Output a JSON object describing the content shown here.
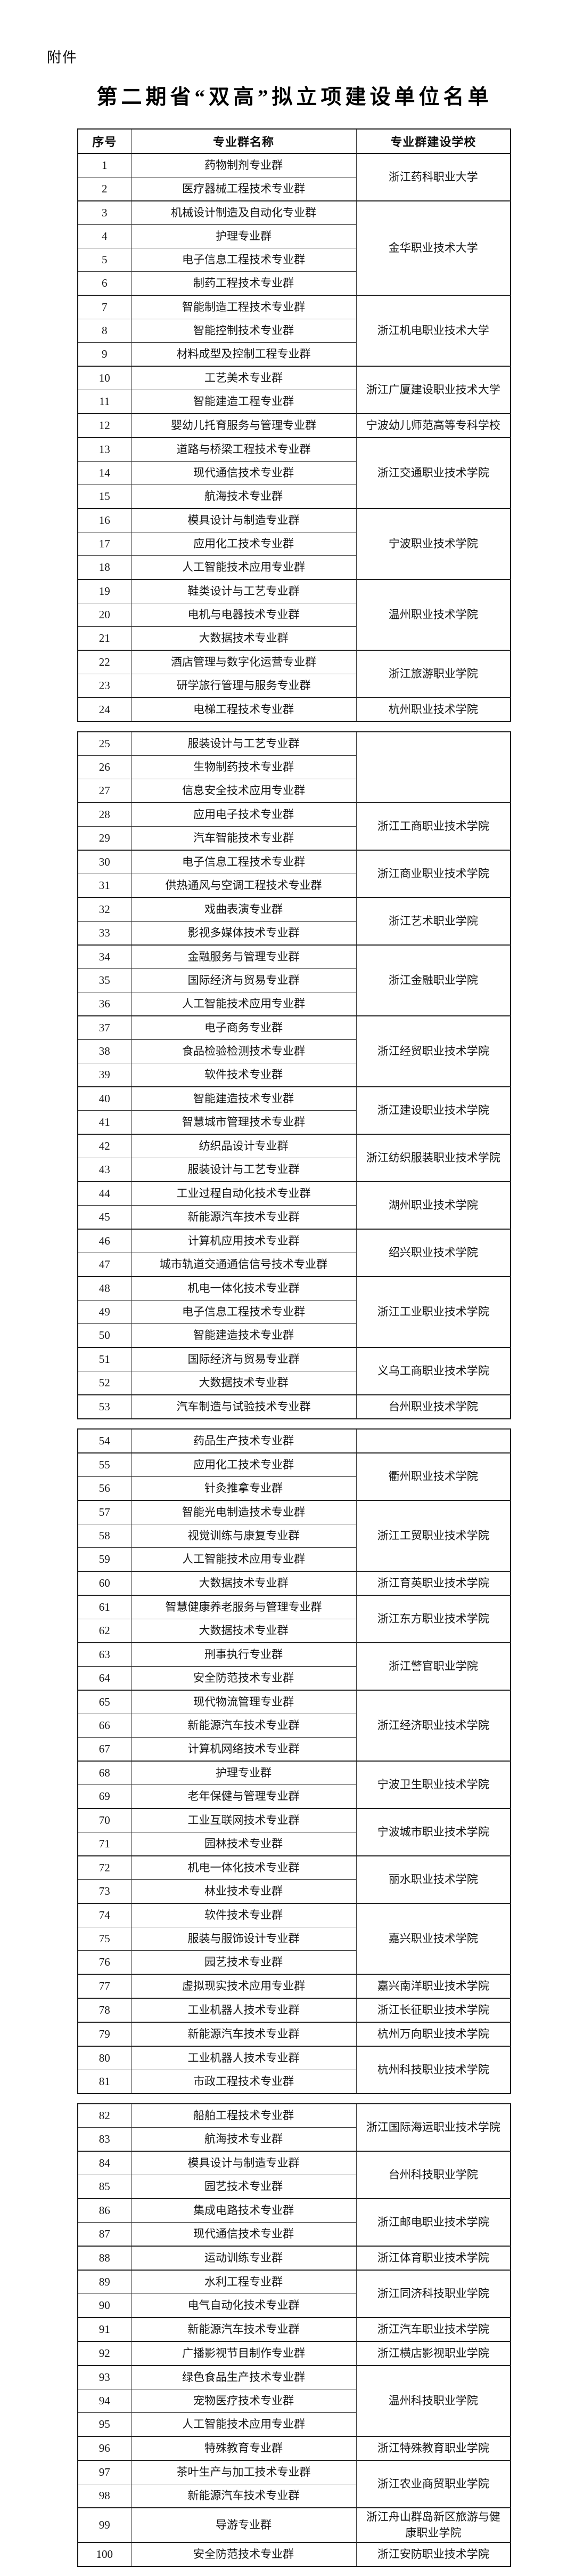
{
  "page": {
    "attachment_label": "附件",
    "title": "第二期省“双高”拟立项建设单位名单"
  },
  "table": {
    "headers": [
      "序号",
      "专业群名称",
      "专业群建设学校"
    ],
    "header_keys": [
      "no",
      "name",
      "school"
    ],
    "blocks": [
      {
        "has_header": true,
        "groups": [
          {
            "school": "浙江药科职业大学",
            "rows": [
              {
                "no": "1",
                "name": "药物制剂专业群"
              },
              {
                "no": "2",
                "name": "医疗器械工程技术专业群"
              }
            ]
          },
          {
            "school": "金华职业技术大学",
            "rows": [
              {
                "no": "3",
                "name": "机械设计制造及自动化专业群"
              },
              {
                "no": "4",
                "name": "护理专业群"
              },
              {
                "no": "5",
                "name": "电子信息工程技术专业群"
              },
              {
                "no": "6",
                "name": "制药工程技术专业群"
              }
            ]
          },
          {
            "school": "浙江机电职业技术大学",
            "rows": [
              {
                "no": "7",
                "name": "智能制造工程技术专业群"
              },
              {
                "no": "8",
                "name": "智能控制技术专业群"
              },
              {
                "no": "9",
                "name": "材料成型及控制工程专业群"
              }
            ]
          },
          {
            "school": "浙江广厦建设职业技术大学",
            "rows": [
              {
                "no": "10",
                "name": "工艺美术专业群"
              },
              {
                "no": "11",
                "name": "智能建造工程专业群"
              }
            ]
          },
          {
            "school": "宁波幼儿师范高等专科学校",
            "rows": [
              {
                "no": "12",
                "name": "婴幼儿托育服务与管理专业群"
              }
            ]
          },
          {
            "school": "浙江交通职业技术学院",
            "rows": [
              {
                "no": "13",
                "name": "道路与桥梁工程技术专业群"
              },
              {
                "no": "14",
                "name": "现代通信技术专业群"
              },
              {
                "no": "15",
                "name": "航海技术专业群"
              }
            ]
          },
          {
            "school": "宁波职业技术学院",
            "rows": [
              {
                "no": "16",
                "name": "模具设计与制造专业群"
              },
              {
                "no": "17",
                "name": "应用化工技术专业群"
              },
              {
                "no": "18",
                "name": "人工智能技术应用专业群"
              }
            ]
          },
          {
            "school": "温州职业技术学院",
            "rows": [
              {
                "no": "19",
                "name": "鞋类设计与工艺专业群"
              },
              {
                "no": "20",
                "name": "电机与电器技术专业群"
              },
              {
                "no": "21",
                "name": "大数据技术专业群"
              }
            ]
          },
          {
            "school": "浙江旅游职业学院",
            "rows": [
              {
                "no": "22",
                "name": "酒店管理与数字化运营专业群"
              },
              {
                "no": "23",
                "name": "研学旅行管理与服务专业群"
              }
            ]
          },
          {
            "school": "杭州职业技术学院",
            "rows": [
              {
                "no": "24",
                "name": "电梯工程技术专业群"
              }
            ]
          }
        ]
      },
      {
        "has_header": false,
        "groups": [
          {
            "school": "",
            "rows": [
              {
                "no": "25",
                "name": "服装设计与工艺专业群"
              },
              {
                "no": "26",
                "name": "生物制药技术专业群"
              },
              {
                "no": "27",
                "name": "信息安全技术应用专业群"
              }
            ]
          },
          {
            "school": "浙江工商职业技术学院",
            "rows": [
              {
                "no": "28",
                "name": "应用电子技术专业群"
              },
              {
                "no": "29",
                "name": "汽车智能技术专业群"
              }
            ]
          },
          {
            "school": "浙江商业职业技术学院",
            "rows": [
              {
                "no": "30",
                "name": "电子信息工程技术专业群"
              },
              {
                "no": "31",
                "name": "供热通风与空调工程技术专业群"
              }
            ]
          },
          {
            "school": "浙江艺术职业学院",
            "rows": [
              {
                "no": "32",
                "name": "戏曲表演专业群"
              },
              {
                "no": "33",
                "name": "影视多媒体技术专业群"
              }
            ]
          },
          {
            "school": "浙江金融职业学院",
            "rows": [
              {
                "no": "34",
                "name": "金融服务与管理专业群"
              },
              {
                "no": "35",
                "name": "国际经济与贸易专业群"
              },
              {
                "no": "36",
                "name": "人工智能技术应用专业群"
              }
            ]
          },
          {
            "school": "浙江经贸职业技术学院",
            "rows": [
              {
                "no": "37",
                "name": "电子商务专业群"
              },
              {
                "no": "38",
                "name": "食品检验检测技术专业群"
              },
              {
                "no": "39",
                "name": "软件技术专业群"
              }
            ]
          },
          {
            "school": "浙江建设职业技术学院",
            "rows": [
              {
                "no": "40",
                "name": "智能建造技术专业群"
              },
              {
                "no": "41",
                "name": "智慧城市管理技术专业群"
              }
            ]
          },
          {
            "school": "浙江纺织服装职业技术学院",
            "rows": [
              {
                "no": "42",
                "name": "纺织品设计专业群"
              },
              {
                "no": "43",
                "name": "服装设计与工艺专业群"
              }
            ]
          },
          {
            "school": "湖州职业技术学院",
            "rows": [
              {
                "no": "44",
                "name": "工业过程自动化技术专业群"
              },
              {
                "no": "45",
                "name": "新能源汽车技术专业群"
              }
            ]
          },
          {
            "school": "绍兴职业技术学院",
            "rows": [
              {
                "no": "46",
                "name": "计算机应用技术专业群"
              },
              {
                "no": "47",
                "name": "城市轨道交通通信信号技术专业群"
              }
            ]
          },
          {
            "school": "浙江工业职业技术学院",
            "rows": [
              {
                "no": "48",
                "name": "机电一体化技术专业群"
              },
              {
                "no": "49",
                "name": "电子信息工程技术专业群"
              },
              {
                "no": "50",
                "name": "智能建造技术专业群"
              }
            ]
          },
          {
            "school": "义乌工商职业技术学院",
            "rows": [
              {
                "no": "51",
                "name": "国际经济与贸易专业群"
              },
              {
                "no": "52",
                "name": "大数据技术专业群"
              }
            ]
          },
          {
            "school": "台州职业技术学院",
            "rows": [
              {
                "no": "53",
                "name": "汽车制造与试验技术专业群"
              }
            ]
          }
        ]
      },
      {
        "has_header": false,
        "groups": [
          {
            "school": "",
            "rows": [
              {
                "no": "54",
                "name": "药品生产技术专业群"
              }
            ]
          },
          {
            "school": "衢州职业技术学院",
            "rows": [
              {
                "no": "55",
                "name": "应用化工技术专业群"
              },
              {
                "no": "56",
                "name": "针灸推拿专业群"
              }
            ]
          },
          {
            "school": "浙江工贸职业技术学院",
            "rows": [
              {
                "no": "57",
                "name": "智能光电制造技术专业群"
              },
              {
                "no": "58",
                "name": "视觉训练与康复专业群"
              },
              {
                "no": "59",
                "name": "人工智能技术应用专业群"
              }
            ]
          },
          {
            "school": "浙江育英职业技术学院",
            "rows": [
              {
                "no": "60",
                "name": "大数据技术专业群"
              }
            ]
          },
          {
            "school": "浙江东方职业技术学院",
            "rows": [
              {
                "no": "61",
                "name": "智慧健康养老服务与管理专业群"
              },
              {
                "no": "62",
                "name": "大数据技术专业群"
              }
            ]
          },
          {
            "school": "浙江警官职业学院",
            "rows": [
              {
                "no": "63",
                "name": "刑事执行专业群"
              },
              {
                "no": "64",
                "name": "安全防范技术专业群"
              }
            ]
          },
          {
            "school": "浙江经济职业技术学院",
            "rows": [
              {
                "no": "65",
                "name": "现代物流管理专业群"
              },
              {
                "no": "66",
                "name": "新能源汽车技术专业群"
              },
              {
                "no": "67",
                "name": "计算机网络技术专业群"
              }
            ]
          },
          {
            "school": "宁波卫生职业技术学院",
            "rows": [
              {
                "no": "68",
                "name": "护理专业群"
              },
              {
                "no": "69",
                "name": "老年保健与管理专业群"
              }
            ]
          },
          {
            "school": "宁波城市职业技术学院",
            "rows": [
              {
                "no": "70",
                "name": "工业互联网技术专业群"
              },
              {
                "no": "71",
                "name": "园林技术专业群"
              }
            ]
          },
          {
            "school": "丽水职业技术学院",
            "rows": [
              {
                "no": "72",
                "name": "机电一体化技术专业群"
              },
              {
                "no": "73",
                "name": "林业技术专业群"
              }
            ]
          },
          {
            "school": "嘉兴职业技术学院",
            "rows": [
              {
                "no": "74",
                "name": "软件技术专业群"
              },
              {
                "no": "75",
                "name": "服装与服饰设计专业群"
              },
              {
                "no": "76",
                "name": "园艺技术专业群"
              }
            ]
          },
          {
            "school": "嘉兴南洋职业技术学院",
            "rows": [
              {
                "no": "77",
                "name": "虚拟现实技术应用专业群"
              }
            ]
          },
          {
            "school": "浙江长征职业技术学院",
            "rows": [
              {
                "no": "78",
                "name": "工业机器人技术专业群"
              }
            ]
          },
          {
            "school": "杭州万向职业技术学院",
            "rows": [
              {
                "no": "79",
                "name": "新能源汽车技术专业群"
              }
            ]
          },
          {
            "school": "杭州科技职业技术学院",
            "rows": [
              {
                "no": "80",
                "name": "工业机器人技术专业群"
              },
              {
                "no": "81",
                "name": "市政工程技术专业群"
              }
            ]
          }
        ]
      },
      {
        "has_header": false,
        "groups": [
          {
            "school": "浙江国际海运职业技术学院",
            "rows": [
              {
                "no": "82",
                "name": "船舶工程技术专业群"
              },
              {
                "no": "83",
                "name": "航海技术专业群"
              }
            ]
          },
          {
            "school": "台州科技职业学院",
            "rows": [
              {
                "no": "84",
                "name": "模具设计与制造专业群"
              },
              {
                "no": "85",
                "name": "园艺技术专业群"
              }
            ]
          },
          {
            "school": "浙江邮电职业技术学院",
            "rows": [
              {
                "no": "86",
                "name": "集成电路技术专业群"
              },
              {
                "no": "87",
                "name": "现代通信技术专业群"
              }
            ]
          },
          {
            "school": "浙江体育职业技术学院",
            "rows": [
              {
                "no": "88",
                "name": "运动训练专业群"
              }
            ]
          },
          {
            "school": "浙江同济科技职业学院",
            "rows": [
              {
                "no": "89",
                "name": "水利工程专业群"
              },
              {
                "no": "90",
                "name": "电气自动化技术专业群"
              }
            ]
          },
          {
            "school": "浙江汽车职业技术学院",
            "rows": [
              {
                "no": "91",
                "name": "新能源汽车技术专业群"
              }
            ]
          },
          {
            "school": "浙江横店影视职业学院",
            "rows": [
              {
                "no": "92",
                "name": "广播影视节目制作专业群"
              }
            ]
          },
          {
            "school": "温州科技职业学院",
            "rows": [
              {
                "no": "93",
                "name": "绿色食品生产技术专业群"
              },
              {
                "no": "94",
                "name": "宠物医疗技术专业群"
              },
              {
                "no": "95",
                "name": "人工智能技术应用专业群"
              }
            ]
          },
          {
            "school": "浙江特殊教育职业学院",
            "rows": [
              {
                "no": "96",
                "name": "特殊教育专业群"
              }
            ]
          },
          {
            "school": "浙江农业商贸职业学院",
            "rows": [
              {
                "no": "97",
                "name": "茶叶生产与加工技术专业群"
              },
              {
                "no": "98",
                "name": "新能源汽车技术专业群"
              }
            ]
          },
          {
            "school": "浙江舟山群岛新区旅游与健康职业学院",
            "rows": [
              {
                "no": "99",
                "name": "导游专业群"
              }
            ]
          },
          {
            "school": "浙江安防职业技术学院",
            "rows": [
              {
                "no": "100",
                "name": "安全防范技术专业群"
              }
            ]
          }
        ]
      }
    ]
  }
}
